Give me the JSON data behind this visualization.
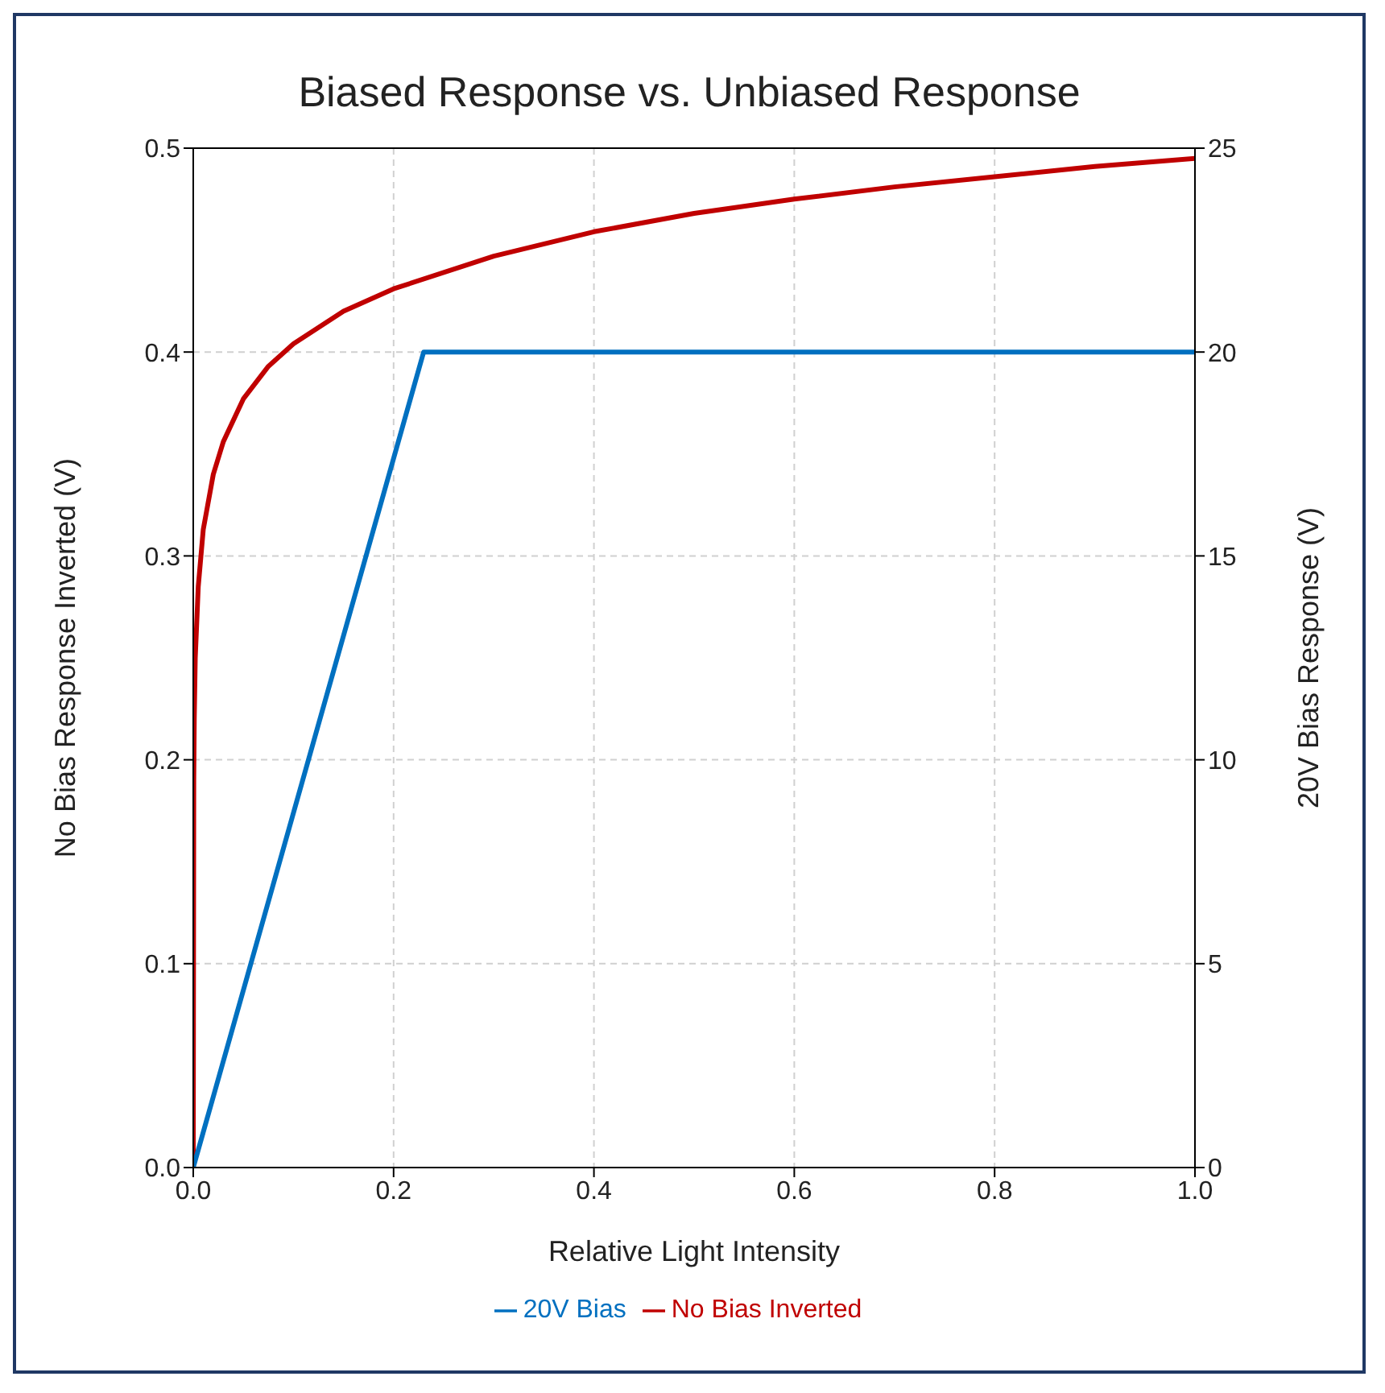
{
  "chart_data": {
    "type": "line",
    "title": "Biased Response vs. Unbiased Response",
    "xlabel": "Relative Light Intensity",
    "ylabel": "No Bias Response Inverted (V)",
    "y2label": "20V Bias Response (V)",
    "series": [
      {
        "name": "No Bias Inverted",
        "color": "#c00000",
        "x": [
          0,
          0.0005,
          0.001,
          0.002,
          0.005,
          0.01,
          0.02,
          0.03,
          0.05,
          0.075,
          0.1,
          0.15,
          0.2,
          0.3,
          0.4,
          0.5,
          0.6,
          0.7,
          0.8,
          0.9,
          1.0
        ],
        "values": [
          0,
          0.19,
          0.22,
          0.25,
          0.285,
          0.313,
          0.34,
          0.356,
          0.377,
          0.393,
          0.404,
          0.42,
          0.431,
          0.447,
          0.459,
          0.468,
          0.475,
          0.481,
          0.486,
          0.491,
          0.495
        ]
      },
      {
        "name": "20V Bias",
        "color": "#0070c0",
        "axis": "y2",
        "x": [
          0,
          0.23,
          1.0
        ],
        "values": [
          0,
          20,
          20
        ]
      }
    ],
    "xlim": [
      0,
      1
    ],
    "xticks": [
      {
        "value": 0,
        "label": "0.0"
      },
      0.2,
      0.4,
      0.6,
      0.8,
      {
        "value": 1,
        "label": "1.0"
      }
    ],
    "ylim": [
      0,
      0.5
    ],
    "yticks": [
      {
        "value": 0,
        "label": "0.0"
      },
      0.1,
      0.2,
      0.3,
      0.4,
      0.5
    ],
    "y2lim": [
      0,
      25
    ],
    "y2ticks": [
      0,
      5,
      10,
      15,
      20,
      25
    ],
    "grid": true,
    "legend": "bottom",
    "marker": "none",
    "line_style": "solid"
  }
}
